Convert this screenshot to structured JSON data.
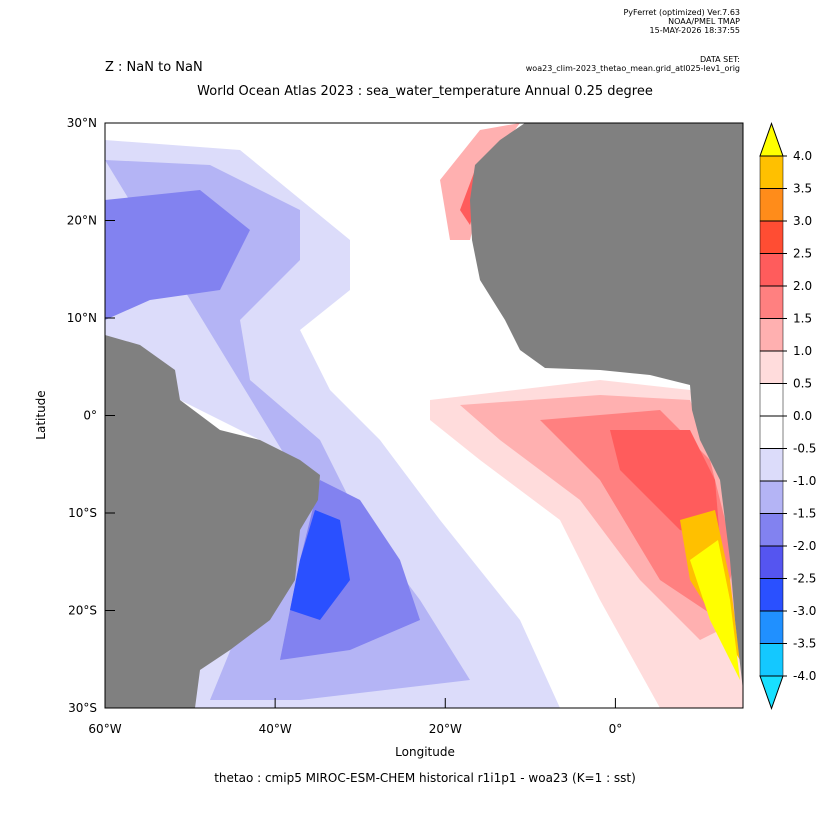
{
  "header": {
    "software": "PyFerret (optimized) Ver.7.63",
    "organization": "NOAA/PMEL TMAP",
    "timestamp": "15-MAY-2026 18:37:55",
    "dataset_label": "DATA SET:",
    "dataset": "woa23_clim-2023_thetao_mean.grid_atl025-lev1_orig",
    "z_range": "Z : NaN to NaN",
    "title": "World Ocean Atlas 2023 : sea_water_temperature Annual  0.25 degree"
  },
  "map": {
    "xlabel": "Longitude",
    "ylabel": "Latitude",
    "caption": "thetao : cmip5 MIROC-ESM-CHEM historical r1i1p1 - woa23  (K=1 : sst)",
    "xlim": [
      -60,
      15
    ],
    "ylim": [
      -30,
      30
    ],
    "xticks": [
      {
        "value": -60,
        "label": "60°W"
      },
      {
        "value": -40,
        "label": "40°W"
      },
      {
        "value": -20,
        "label": "20°W"
      },
      {
        "value": 0,
        "label": "0°"
      }
    ],
    "yticks": [
      {
        "value": 30,
        "label": "30°N"
      },
      {
        "value": 20,
        "label": "20°N"
      },
      {
        "value": 10,
        "label": "10°N"
      },
      {
        "value": 0,
        "label": "0°"
      },
      {
        "value": -10,
        "label": "10°S"
      },
      {
        "value": -20,
        "label": "20°S"
      },
      {
        "value": -30,
        "label": "30°S"
      }
    ]
  },
  "colorbar": {
    "levels": [
      {
        "value": 4,
        "label": "4.0"
      },
      {
        "value": 3.5,
        "label": "3.5"
      },
      {
        "value": 3,
        "label": "3.0"
      },
      {
        "value": 2.5,
        "label": "2.5"
      },
      {
        "value": 2,
        "label": "2.0"
      },
      {
        "value": 1.5,
        "label": "1.5"
      },
      {
        "value": 1,
        "label": "1.0"
      },
      {
        "value": 0.5,
        "label": "0.5"
      },
      {
        "value": 0,
        "label": "0.0"
      },
      {
        "value": -0.5,
        "label": "-0.5"
      },
      {
        "value": -1,
        "label": "-1.0"
      },
      {
        "value": -1.5,
        "label": "-1.5"
      },
      {
        "value": -2,
        "label": "-2.0"
      },
      {
        "value": -2.5,
        "label": "-2.5"
      },
      {
        "value": -3,
        "label": "-3.0"
      },
      {
        "value": -3.5,
        "label": "-3.5"
      },
      {
        "value": -4,
        "label": "-4.0"
      }
    ],
    "colors": [
      "#ffc000",
      "#ff8c1a",
      "#ff4d33",
      "#ff5c5c",
      "#ff8080",
      "#ffb0b0",
      "#ffdcdc",
      "#ffffff",
      "#ffffff",
      "#dcdcfa",
      "#b4b4f5",
      "#8282f0",
      "#5555f0",
      "#2a50ff",
      "#2090ff",
      "#14c8ff"
    ],
    "over_color": "#ffff00",
    "under_color": "#18e0ff"
  }
}
